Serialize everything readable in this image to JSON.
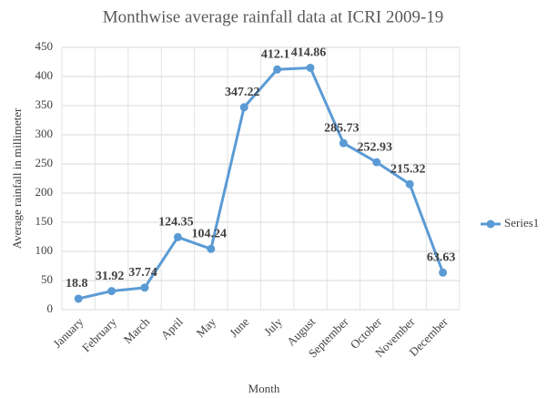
{
  "chart_data": {
    "type": "line",
    "title": "Monthwise average rainfall data at ICRI 2009-19",
    "x_label": "Month",
    "y_label": "Average rainfall in millimeter",
    "categories": [
      "January",
      "February",
      "March",
      "April",
      "May",
      "June",
      "July",
      "August",
      "September",
      "October",
      "November",
      "December"
    ],
    "series": [
      {
        "name": "Series1",
        "color": "#5b9bd5",
        "values": [
          18.8,
          31.92,
          37.74,
          124.35,
          104.24,
          347.22,
          412.1,
          414.86,
          285.73,
          252.93,
          215.32,
          63.63
        ]
      }
    ],
    "ylim": [
      0,
      450
    ],
    "yticks": [
      0,
      50,
      100,
      150,
      200,
      250,
      300,
      350,
      400,
      450
    ],
    "grid": true,
    "legend": "right"
  }
}
